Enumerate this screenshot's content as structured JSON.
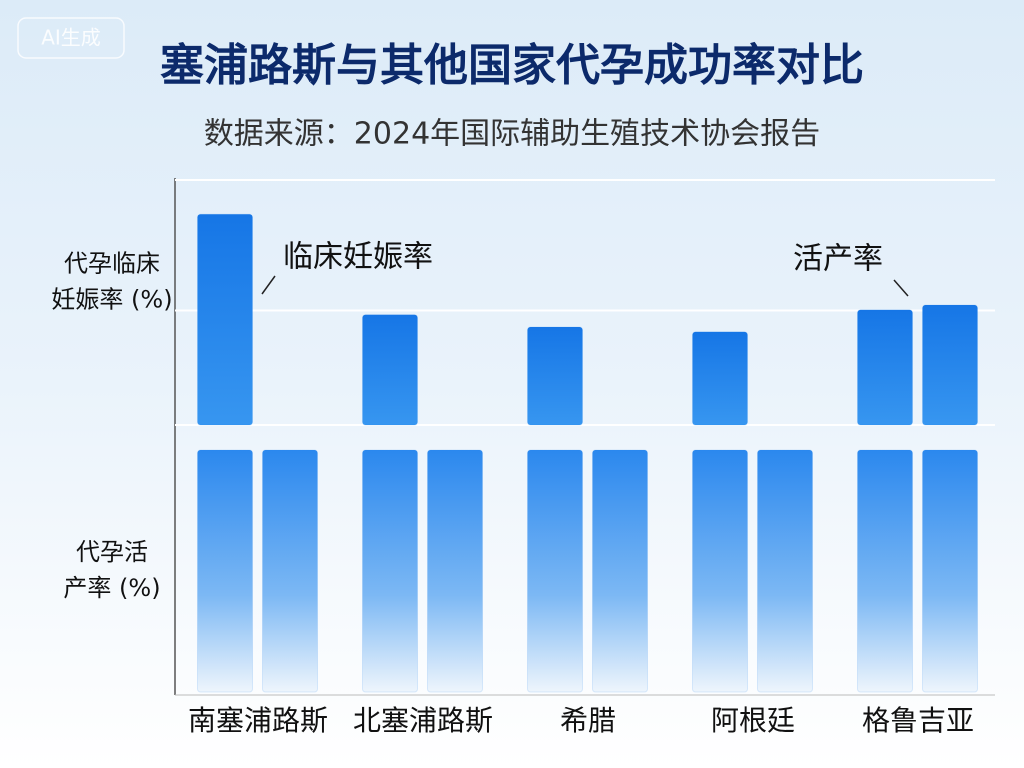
{
  "watermark": "AI生成",
  "chart_data": {
    "type": "bar",
    "title": "塞浦路斯与其他国家代孕成功率对比",
    "subtitle": "数据来源：2024年国际辅助生殖技术协会报告",
    "categories": [
      "南塞浦路斯",
      "北塞浦路斯",
      "希腊",
      "阿根廷",
      "格鲁吉亚"
    ],
    "panels": [
      {
        "ylabel": [
          "代孕临床",
          "妊娠率 (%)"
        ],
        "ylim": [
          0,
          100
        ],
        "grid": true,
        "series": [
          {
            "name": "临床妊娠率",
            "color": "#1b7fea",
            "values": [
              86,
              45,
              40,
              38,
              47
            ]
          },
          {
            "name": "活产率",
            "color": "#1b7fea",
            "values": [
              null,
              null,
              null,
              null,
              49
            ]
          }
        ]
      },
      {
        "ylabel": [
          "代孕活",
          "产率 (%)"
        ],
        "ylim": [
          0,
          100
        ],
        "grid": false,
        "series": [
          {
            "color": "#2b88ee",
            "values": [
              100,
              100,
              100,
              100,
              100
            ]
          },
          {
            "color": "#2b88ee",
            "values": [
              100,
              100,
              100,
              100,
              100
            ]
          }
        ]
      }
    ]
  }
}
